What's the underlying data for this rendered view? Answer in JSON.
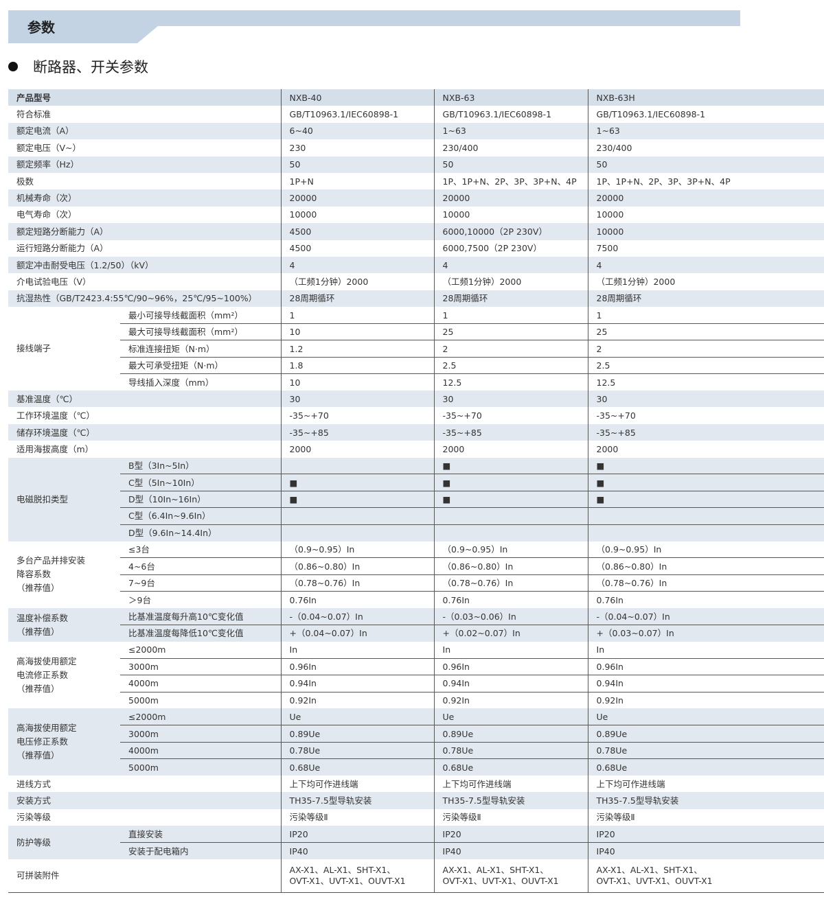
{
  "banner": {
    "title": "参数"
  },
  "section": {
    "title": "断路器、开关参数"
  },
  "table": {
    "header": {
      "label": "产品型号",
      "values": [
        "NXB-40",
        "NXB-63",
        "NXB-63H"
      ]
    },
    "rows": [
      {
        "label": "符合标准",
        "values": [
          "GB/T10963.1/IEC60898-1",
          "GB/T10963.1/IEC60898-1",
          "GB/T10963.1/IEC60898-1"
        ]
      },
      {
        "label": "额定电流（A）",
        "values": [
          "6~40",
          "1~63",
          "1~63"
        ]
      },
      {
        "label": "额定电压（V~）",
        "values": [
          "230",
          "230/400",
          "230/400"
        ]
      },
      {
        "label": "额定频率（Hz）",
        "values": [
          "50",
          "50",
          "50"
        ]
      },
      {
        "label": "极数",
        "values": [
          "1P+N",
          "1P、1P+N、2P、3P、3P+N、4P",
          "1P、1P+N、2P、3P、3P+N、4P"
        ]
      },
      {
        "label": "机械寿命（次）",
        "values": [
          "20000",
          "20000",
          "20000"
        ]
      },
      {
        "label": "电气寿命（次）",
        "values": [
          "10000",
          "10000",
          "10000"
        ]
      },
      {
        "label": "额定短路分断能力（A）",
        "values": [
          "4500",
          "6000,10000（2P 230V）",
          "10000"
        ]
      },
      {
        "label": "运行短路分断能力（A）",
        "values": [
          "4500",
          "6000,7500（2P 230V）",
          "7500"
        ]
      },
      {
        "label": "额定冲击耐受电压（1.2/50）（kV）",
        "values": [
          "4",
          "4",
          "4"
        ]
      },
      {
        "label": "介电试验电压（V）",
        "values": [
          "（工频1分钟）2000",
          "（工频1分钟）2000",
          "（工频1分钟）2000"
        ]
      },
      {
        "label": "抗湿热性（GB/T2423.4:55℃/90~96%，25℃/95~100%）",
        "values": [
          "28周期循环",
          "28周期循环",
          "28周期循环"
        ]
      },
      {
        "label": "接线端子",
        "subrows": [
          {
            "label": "最小可接导线截面积（mm²）",
            "values": [
              "1",
              "1",
              "1"
            ]
          },
          {
            "label": "最大可接导线截面积（mm²）",
            "values": [
              "10",
              "25",
              "25"
            ]
          },
          {
            "label": "标准连接扭矩（N·m）",
            "values": [
              "1.2",
              "2",
              "2"
            ]
          },
          {
            "label": "最大可承受扭矩（N·m）",
            "values": [
              "1.8",
              "2.5",
              "2.5"
            ]
          },
          {
            "label": "导线插入深度（mm）",
            "values": [
              "10",
              "12.5",
              "12.5"
            ]
          }
        ]
      },
      {
        "label": "基准温度（℃）",
        "values": [
          "30",
          "30",
          "30"
        ]
      },
      {
        "label": "工作环境温度（℃）",
        "values": [
          "-35~+70",
          "-35~+70",
          "-35~+70"
        ]
      },
      {
        "label": "储存环境温度（℃）",
        "values": [
          "-35~+85",
          "-35~+85",
          "-35~+85"
        ]
      },
      {
        "label": "适用海拔高度（m）",
        "values": [
          "2000",
          "2000",
          "2000"
        ]
      },
      {
        "label": "电磁脱扣类型",
        "subrows": [
          {
            "label": "B型（3In~5In）",
            "values": [
              "",
              "■",
              "■"
            ]
          },
          {
            "label": "C型（5In~10In）",
            "values": [
              "■",
              "■",
              "■"
            ]
          },
          {
            "label": "D型（10In~16In）",
            "values": [
              "■",
              "■",
              "■"
            ]
          },
          {
            "label": "C型（6.4In~9.6In）",
            "values": [
              "",
              "",
              ""
            ]
          },
          {
            "label": "D型（9.6In~14.4In）",
            "values": [
              "",
              "",
              ""
            ]
          }
        ]
      },
      {
        "label": "多台产品并排安装\n降容系数\n（推荐值）",
        "subrows": [
          {
            "label": "≤3台",
            "values": [
              "（0.9~0.95）In",
              "（0.9~0.95）In",
              "（0.9~0.95）In"
            ]
          },
          {
            "label": "4~6台",
            "values": [
              "（0.86~0.80）In",
              "（0.86~0.80）In",
              "（0.86~0.80）In"
            ]
          },
          {
            "label": "7~9台",
            "values": [
              "（0.78~0.76）In",
              "（0.78~0.76）In",
              "（0.78~0.76）In"
            ]
          },
          {
            "label": "＞9台",
            "values": [
              "0.76In",
              "0.76In",
              "0.76In"
            ]
          }
        ]
      },
      {
        "label": "温度补偿系数\n（推荐值）",
        "subrows": [
          {
            "label": "比基准温度每升高10℃变化值",
            "values": [
              "-（0.04~0.07）In",
              "-（0.03~0.06）In",
              "-（0.04~0.07）In"
            ]
          },
          {
            "label": "比基准温度每降低10℃变化值",
            "values": [
              "+（0.04~0.07）In",
              "+（0.02~0.07）In",
              "+（0.03~0.07）In"
            ]
          }
        ]
      },
      {
        "label": "高海拔使用额定\n电流修正系数\n（推荐值）",
        "subrows": [
          {
            "label": "≤2000m",
            "values": [
              "In",
              "In",
              "In"
            ]
          },
          {
            "label": "3000m",
            "values": [
              "0.96In",
              "0.96In",
              "0.96In"
            ]
          },
          {
            "label": "4000m",
            "values": [
              "0.94In",
              "0.94In",
              "0.94In"
            ]
          },
          {
            "label": "5000m",
            "values": [
              "0.92In",
              "0.92In",
              "0.92In"
            ]
          }
        ]
      },
      {
        "label": "高海拔使用额定\n电压修正系数\n（推荐值）",
        "subrows": [
          {
            "label": "≤2000m",
            "values": [
              "Ue",
              "Ue",
              "Ue"
            ]
          },
          {
            "label": "3000m",
            "values": [
              "0.89Ue",
              "0.89Ue",
              "0.89Ue"
            ]
          },
          {
            "label": "4000m",
            "values": [
              "0.78Ue",
              "0.78Ue",
              "0.78Ue"
            ]
          },
          {
            "label": "5000m",
            "values": [
              "0.68Ue",
              "0.68Ue",
              "0.68Ue"
            ]
          }
        ]
      },
      {
        "label": "进线方式",
        "values": [
          "上下均可作进线端",
          "上下均可作进线端",
          "上下均可作进线端"
        ]
      },
      {
        "label": "安装方式",
        "values": [
          "TH35-7.5型导轨安装",
          "TH35-7.5型导轨安装",
          "TH35-7.5型导轨安装"
        ]
      },
      {
        "label": "污染等级",
        "values": [
          "污染等级Ⅱ",
          "污染等级Ⅱ",
          "污染等级Ⅱ"
        ]
      },
      {
        "label": "防护等级",
        "subrows": [
          {
            "label": "直接安装",
            "values": [
              "IP20",
              "IP20",
              "IP20"
            ]
          },
          {
            "label": "安装于配电箱内",
            "values": [
              "IP40",
              "IP40",
              "IP40"
            ]
          }
        ]
      },
      {
        "label": "可拼装附件",
        "double": true,
        "values": [
          "AX-X1、AL-X1、SHT-X1、\nOVT-X1、UVT-X1、OUVT-X1",
          "AX-X1、AL-X1、SHT-X1、\nOVT-X1、UVT-X1、OUVT-X1",
          "AX-X1、AL-X1、SHT-X1、\nOVT-X1、UVT-X1、OUVT-X1"
        ]
      }
    ]
  }
}
